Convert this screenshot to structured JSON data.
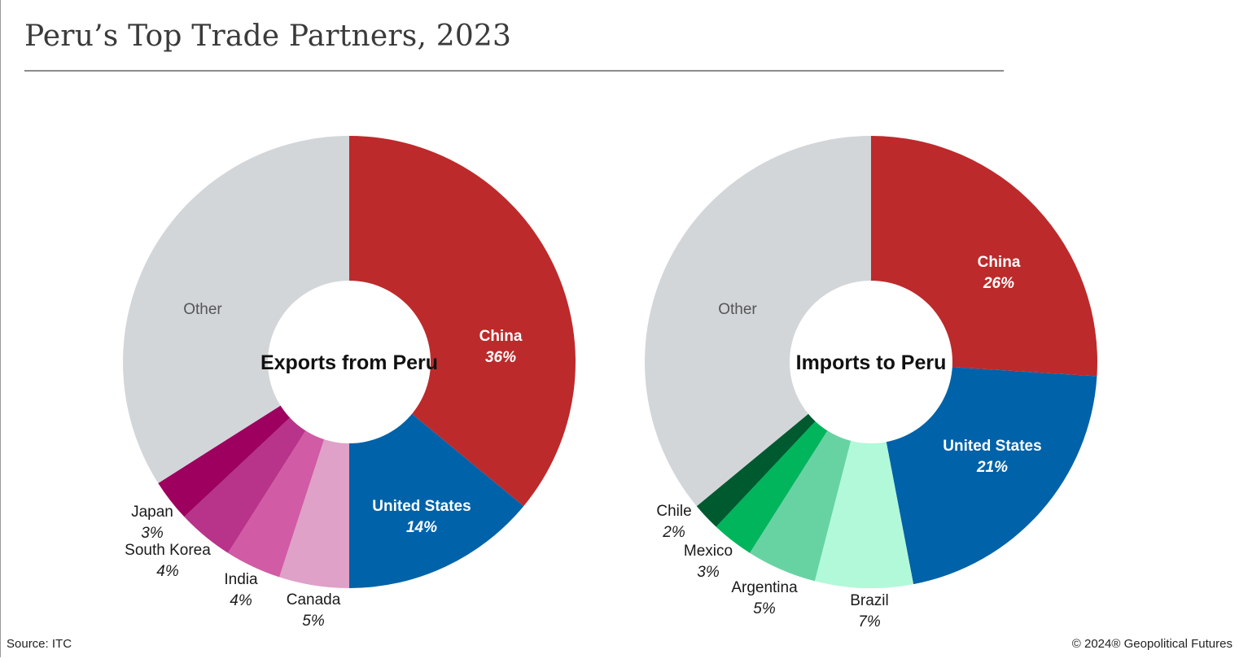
{
  "header": {
    "title": "Peru’s Top Trade Partners, 2023"
  },
  "footer": {
    "source": "Source: ITC",
    "copyright": "© 2024® Geopolitical Futures"
  },
  "chart_data": [
    {
      "type": "pie",
      "title": "Exports from Peru",
      "slices": [
        {
          "label": "China",
          "value_label": "36%",
          "value": 36,
          "color": "#bd2a2b",
          "label_style": "light"
        },
        {
          "label": "United States",
          "value_label": "14%",
          "value": 14,
          "color": "#0062a8",
          "label_style": "light"
        },
        {
          "label": "Canada",
          "value_label": "5%",
          "value": 5,
          "color": "#dfa1c8",
          "label_style": "dark"
        },
        {
          "label": "India",
          "value_label": "4%",
          "value": 4,
          "color": "#d15ba5",
          "label_style": "dark"
        },
        {
          "label": "South Korea",
          "value_label": "4%",
          "value": 4,
          "color": "#b8338a",
          "label_style": "dark"
        },
        {
          "label": "Japan",
          "value_label": "3%",
          "value": 3,
          "color": "#9d005f",
          "label_style": "dark"
        },
        {
          "label": "Other",
          "value_label": "",
          "value": 34,
          "color": "#d3d6d9",
          "label_style": "other"
        }
      ]
    },
    {
      "type": "pie",
      "title": "Imports to Peru",
      "slices": [
        {
          "label": "China",
          "value_label": "26%",
          "value": 26,
          "color": "#bd2a2b",
          "label_style": "light"
        },
        {
          "label": "United States",
          "value_label": "21%",
          "value": 21,
          "color": "#0062a8",
          "label_style": "light"
        },
        {
          "label": "Brazil",
          "value_label": "7%",
          "value": 7,
          "color": "#b1f9d9",
          "label_style": "dark"
        },
        {
          "label": "Argentina",
          "value_label": "5%",
          "value": 5,
          "color": "#67d3a3",
          "label_style": "dark"
        },
        {
          "label": "Mexico",
          "value_label": "3%",
          "value": 3,
          "color": "#00b55b",
          "label_style": "dark"
        },
        {
          "label": "Chile",
          "value_label": "2%",
          "value": 2,
          "color": "#005a30",
          "label_style": "dark"
        },
        {
          "label": "Other",
          "value_label": "",
          "value": 36,
          "color": "#d3d6d9",
          "label_style": "other"
        }
      ]
    }
  ]
}
